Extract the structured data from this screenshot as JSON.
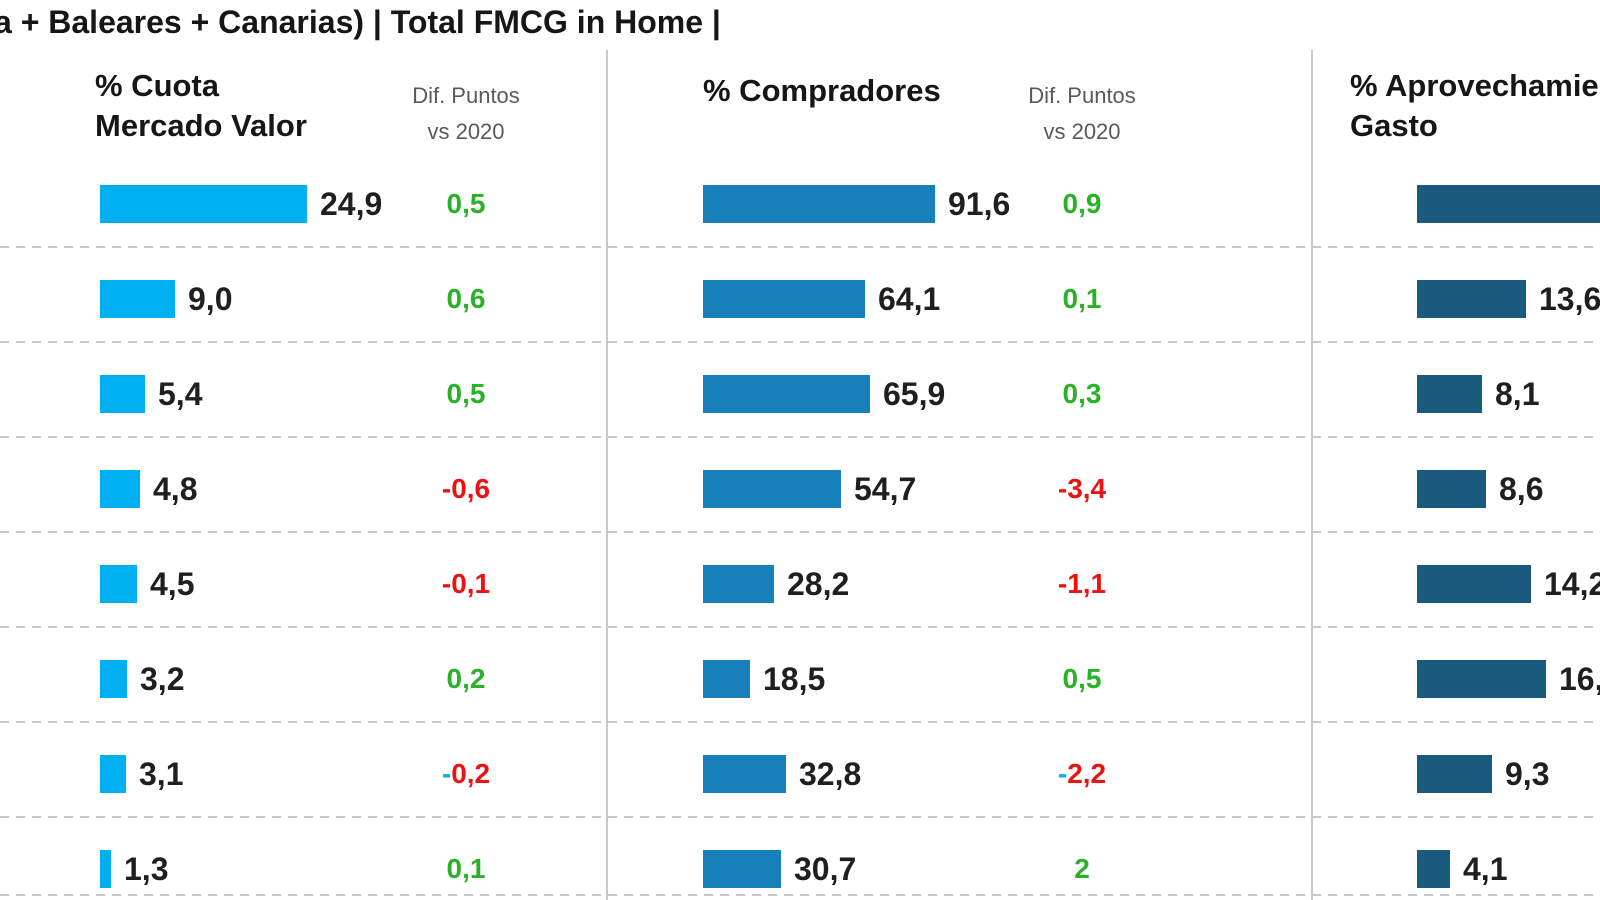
{
  "title": "a + Baleares + Canarias) | Total FMCG in Home |",
  "diff_subheader": {
    "line1": "Dif. Puntos",
    "line2": "vs 2020"
  },
  "colors": {
    "bar_light_blue": "#00b0f0",
    "bar_medium_blue": "#1780ba",
    "bar_dark_blue": "#1a5a7e",
    "diff_positive": "#28b228",
    "diff_negative": "#ee1111",
    "cyan_minus": "#00b0f0",
    "subheader_gray": "#595959",
    "grid_gray": "#c8c8c8"
  },
  "panels": [
    {
      "id": "cuota-mercado-valor",
      "header_lines": [
        "% Cuota",
        "Mercado Valor"
      ],
      "bar_color": "#00b0f0",
      "has_diff_column": true,
      "rows": [
        {
          "value": "24,9",
          "diff": {
            "text": "0,5",
            "dir": "up"
          }
        },
        {
          "value": "9,0",
          "diff": {
            "text": "0,6",
            "dir": "up"
          }
        },
        {
          "value": "5,4",
          "diff": {
            "text": "0,5",
            "dir": "up"
          }
        },
        {
          "value": "4,8",
          "diff": {
            "text": "-0,6",
            "dir": "down"
          }
        },
        {
          "value": "4,5",
          "diff": {
            "text": "-0,1",
            "dir": "down"
          }
        },
        {
          "value": "3,2",
          "diff": {
            "text": "0,2",
            "dir": "up"
          }
        },
        {
          "value": "3,1",
          "diff": {
            "text": "0,2",
            "dir": "down",
            "minus_prefix": "-",
            "minus_color": "#00b0f0"
          }
        },
        {
          "value": "1,3",
          "diff": {
            "text": "0,1",
            "dir": "up"
          }
        }
      ]
    },
    {
      "id": "compradores",
      "header_lines": [
        "% Compradores"
      ],
      "bar_color": "#1780ba",
      "has_diff_column": true,
      "rows": [
        {
          "value": "91,6",
          "diff": {
            "text": "0,9",
            "dir": "up"
          }
        },
        {
          "value": "64,1",
          "diff": {
            "text": "0,1",
            "dir": "up"
          }
        },
        {
          "value": "65,9",
          "diff": {
            "text": "0,3",
            "dir": "up"
          }
        },
        {
          "value": "54,7",
          "diff": {
            "text": "-3,4",
            "dir": "down"
          }
        },
        {
          "value": "28,2",
          "diff": {
            "text": "-1,1",
            "dir": "down"
          }
        },
        {
          "value": "18,5",
          "diff": {
            "text": "0,5",
            "dir": "up"
          }
        },
        {
          "value": "32,8",
          "diff": {
            "text": "2,2",
            "dir": "down",
            "minus_prefix": "-",
            "minus_color": "#00b0f0"
          }
        },
        {
          "value": "30,7",
          "diff": {
            "text": "2",
            "dir": "up"
          }
        }
      ]
    },
    {
      "id": "aprovechamiento-gasto",
      "header_lines": [
        "% Aprovechamiento",
        "Gasto"
      ],
      "bar_color": "#1a5a7e",
      "has_diff_column": false,
      "rows": [
        {
          "value": ""
        },
        {
          "value": "13,6"
        },
        {
          "value": "8,1"
        },
        {
          "value": "8,6"
        },
        {
          "value": "14,2"
        },
        {
          "value": "16,"
        },
        {
          "value": "9,3"
        },
        {
          "value": "4,1"
        }
      ]
    }
  ],
  "chart_data": [
    {
      "type": "bar",
      "orientation": "horizontal",
      "title": "% Cuota Mercado Valor",
      "categories": [
        "",
        "",
        "",
        "",
        "",
        "",
        "",
        ""
      ],
      "values": [
        24.9,
        9.0,
        5.4,
        4.8,
        4.5,
        3.2,
        3.1,
        1.3
      ],
      "diff_column_label": "Dif. Puntos vs 2020",
      "diffs": [
        0.5,
        0.6,
        0.5,
        -0.6,
        -0.1,
        0.2,
        -0.2,
        0.1
      ],
      "grid": "dashed-horizontal",
      "bar_color": "#00b0f0"
    },
    {
      "type": "bar",
      "orientation": "horizontal",
      "title": "% Compradores",
      "categories": [
        "",
        "",
        "",
        "",
        "",
        "",
        "",
        ""
      ],
      "values": [
        91.6,
        64.1,
        65.9,
        54.7,
        28.2,
        18.5,
        32.8,
        30.7
      ],
      "diff_column_label": "Dif. Puntos vs 2020",
      "diffs": [
        0.9,
        0.1,
        0.3,
        -3.4,
        -1.1,
        0.5,
        -2.2,
        2
      ],
      "grid": "dashed-horizontal",
      "bar_color": "#1780ba"
    },
    {
      "type": "bar",
      "orientation": "horizontal",
      "title": "% Aprovechamiento Gasto",
      "title_clipped": true,
      "categories": [
        "",
        "",
        "",
        "",
        "",
        "",
        "",
        ""
      ],
      "values": [
        null,
        13.6,
        8.1,
        8.6,
        14.2,
        16,
        9.3,
        4.1
      ],
      "values_note": "row 1 bar and some labels clipped at right edge of screenshot",
      "grid": "dashed-horizontal",
      "bar_color": "#1a5a7e"
    }
  ]
}
